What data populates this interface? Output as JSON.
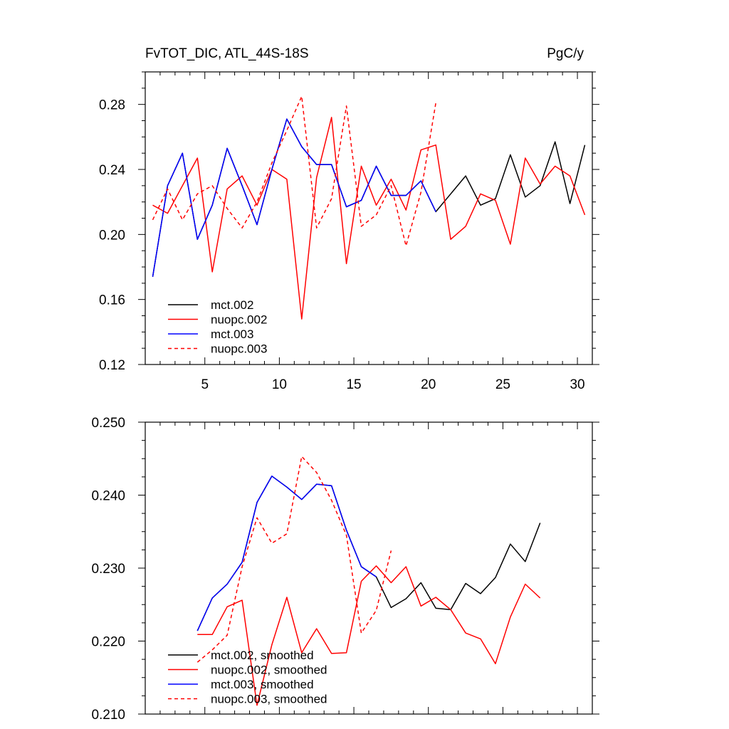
{
  "header": {
    "title_left": "FvTOT_DIC, ATL_44S-18S",
    "title_right": "PgC/y"
  },
  "chart_data": [
    {
      "type": "line",
      "title": "FvTOT_DIC, ATL_44S-18S",
      "units": "PgC/y",
      "xlim": [
        1,
        31
      ],
      "ylim": [
        0.12,
        0.3
      ],
      "x_major_ticks": [
        5,
        10,
        15,
        20,
        25,
        30
      ],
      "x_tick_labels": [
        "5",
        "10",
        "15",
        "20",
        "25",
        "30"
      ],
      "y_major_ticks": [
        0.12,
        0.16,
        0.2,
        0.24,
        0.28
      ],
      "y_tick_labels": [
        "0.12",
        "0.16",
        "0.20",
        "0.24",
        "0.28"
      ],
      "legend_position": "bottom-left",
      "series": [
        {
          "name": "mct.002",
          "color": "#000000",
          "dash": "solid",
          "x": [
            1.5,
            2.5,
            3.5,
            4.5,
            5.5,
            6.5,
            7.5,
            8.5,
            9.5,
            10.5,
            11.5,
            12.5,
            13.5,
            14.5,
            15.5,
            16.5,
            17.5,
            18.5,
            19.5,
            20.5,
            21.5,
            22.5,
            23.5,
            24.5,
            25.5,
            26.5,
            27.5,
            28.5,
            29.5,
            30.5
          ],
          "y": [
            0.174,
            0.23,
            0.25,
            0.197,
            0.218,
            0.253,
            0.23,
            0.206,
            0.24,
            0.271,
            0.254,
            0.243,
            0.243,
            0.217,
            0.221,
            0.242,
            0.224,
            0.224,
            0.233,
            0.214,
            0.225,
            0.236,
            0.218,
            0.222,
            0.249,
            0.223,
            0.23,
            0.257,
            0.219,
            0.255
          ]
        },
        {
          "name": "nuopc.002",
          "color": "#ff0000",
          "dash": "solid",
          "x": [
            1.5,
            2.5,
            3.5,
            4.5,
            5.5,
            6.5,
            7.5,
            8.5,
            9.5,
            10.5,
            11.5,
            12.5,
            13.5,
            14.5,
            15.5,
            16.5,
            17.5,
            18.5,
            19.5,
            20.5,
            21.5,
            22.5,
            23.5,
            24.5,
            25.5,
            26.5,
            27.5,
            28.5,
            29.5,
            30.5
          ],
          "y": [
            0.218,
            0.213,
            0.23,
            0.247,
            0.177,
            0.228,
            0.236,
            0.218,
            0.24,
            0.234,
            0.148,
            0.235,
            0.272,
            0.182,
            0.242,
            0.218,
            0.234,
            0.215,
            0.252,
            0.255,
            0.197,
            0.205,
            0.225,
            0.221,
            0.194,
            0.247,
            0.231,
            0.242,
            0.236,
            0.212
          ]
        },
        {
          "name": "mct.003",
          "color": "#0000ff",
          "dash": "solid",
          "x": [
            1.5,
            2.5,
            3.5,
            4.5,
            5.5,
            6.5,
            7.5,
            8.5,
            9.5,
            10.5,
            11.5,
            12.5,
            13.5,
            14.5,
            15.5,
            16.5,
            17.5,
            18.5,
            19.5,
            20.5
          ],
          "y": [
            0.174,
            0.23,
            0.25,
            0.197,
            0.218,
            0.253,
            0.23,
            0.206,
            0.24,
            0.271,
            0.254,
            0.243,
            0.243,
            0.217,
            0.221,
            0.242,
            0.224,
            0.224,
            0.233,
            0.214
          ]
        },
        {
          "name": "nuopc.003",
          "color": "#ff0000",
          "dash": "dashed",
          "x": [
            1.5,
            2.5,
            3.5,
            4.5,
            5.5,
            6.5,
            7.5,
            8.5,
            9.5,
            10.5,
            11.5,
            12.5,
            13.5,
            14.5,
            15.5,
            16.5,
            17.5,
            18.5,
            19.5,
            20.5
          ],
          "y": [
            0.209,
            0.228,
            0.209,
            0.225,
            0.23,
            0.216,
            0.204,
            0.22,
            0.244,
            0.264,
            0.285,
            0.204,
            0.222,
            0.279,
            0.205,
            0.212,
            0.23,
            0.193,
            0.226,
            0.281
          ]
        }
      ]
    },
    {
      "type": "line",
      "xlim": [
        1,
        31
      ],
      "ylim": [
        0.21,
        0.25
      ],
      "x_major_ticks": [
        5,
        10,
        15,
        20,
        25,
        30
      ],
      "x_tick_labels": [],
      "y_major_ticks": [
        0.21,
        0.22,
        0.23,
        0.24,
        0.25
      ],
      "y_tick_labels": [
        "0.210",
        "0.220",
        "0.230",
        "0.240",
        "0.250"
      ],
      "legend_position": "bottom-left",
      "series": [
        {
          "name": "mct.002, smoothed",
          "color": "#000000",
          "dash": "solid",
          "x": [
            4.5,
            5.5,
            6.5,
            7.5,
            8.5,
            9.5,
            10.5,
            11.5,
            12.5,
            13.5,
            14.5,
            15.5,
            16.5,
            17.5,
            18.5,
            19.5,
            20.5,
            21.5,
            22.5,
            23.5,
            24.5,
            25.5,
            26.5,
            27.5
          ],
          "y": [
            0.2214,
            0.2259,
            0.2278,
            0.2308,
            0.239,
            0.2426,
            0.2411,
            0.2394,
            0.2415,
            0.2413,
            0.2352,
            0.2302,
            0.2288,
            0.2246,
            0.2258,
            0.228,
            0.2245,
            0.2243,
            0.2279,
            0.2265,
            0.2287,
            0.2333,
            0.2309,
            0.2362
          ]
        },
        {
          "name": "nuopc.002, smoothed",
          "color": "#ff0000",
          "dash": "solid",
          "x": [
            4.5,
            5.5,
            6.5,
            7.5,
            8.5,
            9.5,
            10.5,
            11.5,
            12.5,
            13.5,
            14.5,
            15.5,
            16.5,
            17.5,
            18.5,
            19.5,
            20.5,
            21.5,
            22.5,
            23.5,
            24.5,
            25.5,
            26.5,
            27.5
          ],
          "y": [
            0.2209,
            0.2209,
            0.2247,
            0.2256,
            0.2112,
            0.2195,
            0.226,
            0.2184,
            0.2217,
            0.2183,
            0.2184,
            0.2282,
            0.2303,
            0.228,
            0.2302,
            0.2248,
            0.226,
            0.2243,
            0.2211,
            0.2203,
            0.2169,
            0.2233,
            0.2278,
            0.2259
          ]
        },
        {
          "name": "mct.003, smoothed",
          "color": "#0000ff",
          "dash": "solid",
          "x": [
            4.5,
            5.5,
            6.5,
            7.5,
            8.5,
            9.5,
            10.5,
            11.5,
            12.5,
            13.5,
            14.5,
            15.5,
            16.5
          ],
          "y": [
            0.2214,
            0.2259,
            0.2278,
            0.2308,
            0.239,
            0.2426,
            0.2411,
            0.2394,
            0.2415,
            0.2413,
            0.2352,
            0.2302,
            0.2288
          ]
        },
        {
          "name": "nuopc.003, smoothed",
          "color": "#ff0000",
          "dash": "dashed",
          "x": [
            4.5,
            5.5,
            6.5,
            7.5,
            8.5,
            9.5,
            10.5,
            11.5,
            12.5,
            13.5,
            14.5,
            15.5,
            16.5,
            17.5
          ],
          "y": [
            0.2171,
            0.2188,
            0.2208,
            0.2302,
            0.2369,
            0.2334,
            0.2347,
            0.2453,
            0.2431,
            0.2393,
            0.2345,
            0.2211,
            0.2242,
            0.2324
          ]
        }
      ]
    }
  ]
}
